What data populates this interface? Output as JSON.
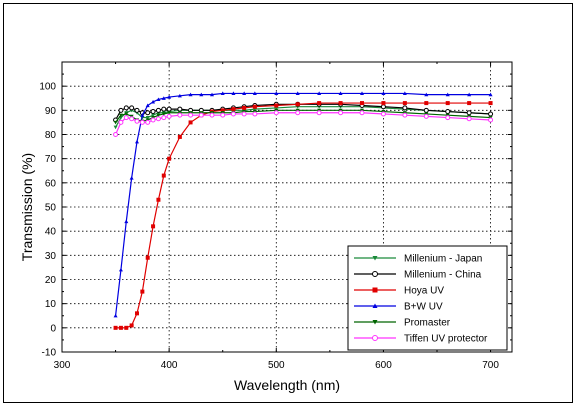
{
  "chart_data": {
    "type": "line",
    "xlabel": "Wavelength (nm)",
    "ylabel": "Transmission (%)",
    "xlim": [
      300,
      720
    ],
    "ylim": [
      -10,
      110
    ],
    "xticks": [
      300,
      400,
      500,
      600,
      700
    ],
    "yticks": [
      -10,
      0,
      10,
      20,
      30,
      40,
      50,
      60,
      70,
      80,
      90,
      100
    ],
    "grid": true,
    "legend_position": "bottom-right",
    "x": [
      350,
      355,
      360,
      365,
      370,
      375,
      380,
      385,
      390,
      395,
      400,
      410,
      420,
      430,
      440,
      450,
      460,
      470,
      480,
      500,
      520,
      540,
      560,
      580,
      600,
      620,
      640,
      660,
      680,
      700
    ],
    "series": [
      {
        "name": "Millenium - Japan",
        "color": "#1a8a3a",
        "marker": "triangle-down",
        "values": [
          83,
          87,
          89,
          90,
          89,
          87,
          87,
          88,
          89,
          89,
          89.5,
          90,
          90,
          90,
          90,
          90,
          90,
          90,
          90.5,
          91,
          91.5,
          91.5,
          91.5,
          91.5,
          91,
          90.5,
          90,
          89.5,
          89,
          88.5
        ]
      },
      {
        "name": "Millenium - China",
        "color": "#000000",
        "marker": "circle-open",
        "values": [
          86,
          90,
          91,
          91,
          90,
          89,
          89,
          89.5,
          90,
          90.5,
          90.5,
          90.5,
          90,
          90,
          90,
          90.5,
          91,
          91.5,
          92,
          92.5,
          92.5,
          92.5,
          92.5,
          92,
          91.5,
          91,
          90,
          89.5,
          89,
          88.5
        ]
      },
      {
        "name": "Hoya UV",
        "color": "#e00000",
        "marker": "square",
        "values": [
          0,
          0,
          0,
          1,
          6,
          15,
          29,
          42,
          53,
          63,
          70,
          79,
          85,
          88,
          89.5,
          90,
          90.5,
          91,
          91.5,
          92,
          92.5,
          93,
          93,
          93,
          93,
          93,
          93,
          93,
          93,
          93
        ]
      },
      {
        "name": "B+W UV",
        "color": "#0000e0",
        "marker": "triangle-up",
        "values": [
          5,
          24,
          44,
          62,
          77,
          88,
          92,
          93.5,
          94.5,
          95,
          95.5,
          96,
          96.5,
          96.5,
          96.5,
          97,
          97,
          97,
          97,
          97,
          97,
          97,
          97,
          97,
          97,
          97,
          96.5,
          96.5,
          96.5,
          96.5
        ]
      },
      {
        "name": "Promaster",
        "color": "#006400",
        "marker": "triangle-down",
        "values": [
          85,
          88,
          88.5,
          87.5,
          86,
          85.5,
          86,
          87,
          88,
          88.5,
          89,
          89,
          89,
          89,
          89,
          89,
          89,
          89.5,
          89.5,
          90,
          90,
          90,
          90,
          90,
          89.5,
          89,
          88.5,
          88,
          87.5,
          87
        ]
      },
      {
        "name": "Tiffen UV protector",
        "color": "#ff33ff",
        "marker": "circle-open",
        "values": [
          80,
          85,
          87,
          86.5,
          85.5,
          85,
          85,
          86,
          86.5,
          87,
          87.5,
          88,
          88,
          88,
          88,
          88,
          88.5,
          88.5,
          88.5,
          89,
          89,
          89,
          89,
          89,
          88.5,
          88,
          87.5,
          87,
          86.5,
          86
        ]
      }
    ]
  }
}
